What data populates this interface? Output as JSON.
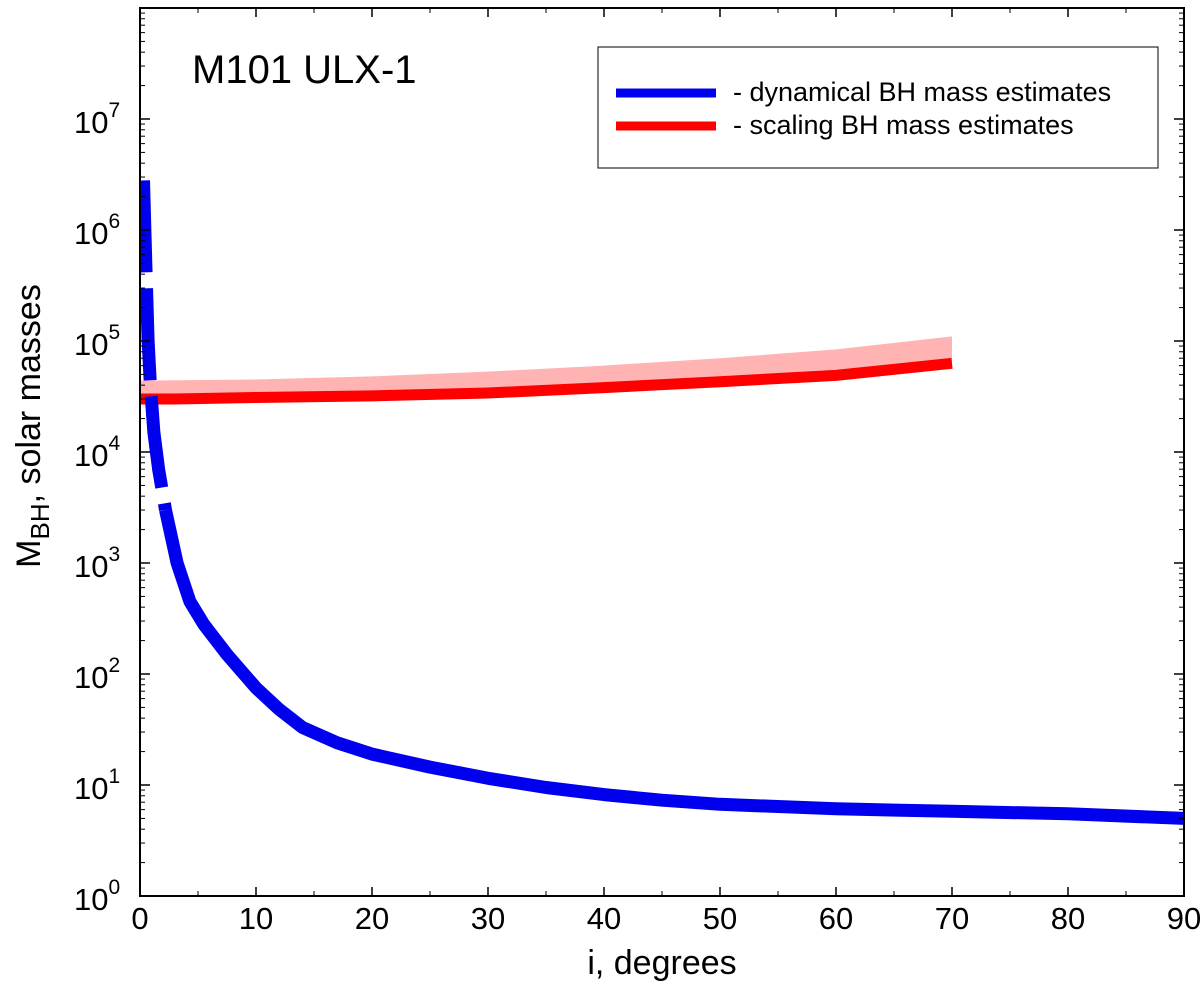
{
  "chart_data": {
    "type": "line",
    "title": "M101 ULX-1",
    "xlabel": "i, degrees",
    "ylabel": {
      "main": "M",
      "subscript": "BH",
      "rest": ", solar masses"
    },
    "xlim": [
      0,
      90
    ],
    "ylim": [
      1,
      100000000
    ],
    "yscale": "log",
    "grid": false,
    "legend_position": "top-right",
    "x_ticks": [
      {
        "value": 0,
        "label": "0"
      },
      {
        "value": 10,
        "label": "10"
      },
      {
        "value": 20,
        "label": "20"
      },
      {
        "value": 30,
        "label": "30"
      },
      {
        "value": 40,
        "label": "40"
      },
      {
        "value": 50,
        "label": "50"
      },
      {
        "value": 60,
        "label": "60"
      },
      {
        "value": 70,
        "label": "70"
      },
      {
        "value": 80,
        "label": "80"
      },
      {
        "value": 90,
        "label": "90"
      }
    ],
    "y_ticks": [
      {
        "value": 1,
        "base": "10",
        "exp": "0"
      },
      {
        "value": 10,
        "base": "10",
        "exp": "1"
      },
      {
        "value": 100,
        "base": "10",
        "exp": "2"
      },
      {
        "value": 1000,
        "base": "10",
        "exp": "3"
      },
      {
        "value": 10000,
        "base": "10",
        "exp": "4"
      },
      {
        "value": 100000,
        "base": "10",
        "exp": "5"
      },
      {
        "value": 1000000,
        "base": "10",
        "exp": "6"
      },
      {
        "value": 10000000,
        "base": "10",
        "exp": "7"
      }
    ],
    "series": [
      {
        "name": "dynamical",
        "legend_label": "- dynamical BH mass estimates",
        "color": "#0000ee",
        "x": [
          0.3,
          0.5,
          0.7,
          0.9,
          1.2,
          1.6,
          2.2,
          3.2,
          4.3,
          5.5,
          7.5,
          10,
          12,
          14,
          17,
          20,
          25,
          30,
          35,
          40,
          45,
          50,
          60,
          70,
          80,
          90
        ],
        "y": [
          2800000,
          500000,
          100000,
          40000,
          15000,
          7000,
          3000,
          1000,
          450,
          280,
          150,
          75,
          48,
          33,
          24,
          19,
          14.5,
          11.5,
          9.5,
          8.2,
          7.3,
          6.7,
          6.1,
          5.8,
          5.5,
          5.0
        ],
        "dashed_below_x": 2.3
      },
      {
        "name": "scaling",
        "legend_label": "- scaling BH mass estimates",
        "color": "#ff0000",
        "x": [
          0,
          3,
          10,
          20,
          30,
          40,
          50,
          60,
          70
        ],
        "y": [
          30000,
          30000,
          31000,
          32000,
          34000,
          38000,
          43000,
          49000,
          63000
        ]
      },
      {
        "name": "scaling-upper-band",
        "color": "#ffb3b3",
        "x": [
          0,
          10,
          20,
          30,
          40,
          50,
          60,
          70
        ],
        "y_low": [
          30000,
          31000,
          32000,
          34000,
          38000,
          43000,
          49000,
          63000
        ],
        "y_high": [
          44000,
          45000,
          48000,
          53000,
          60000,
          70000,
          84000,
          110000
        ]
      }
    ]
  }
}
